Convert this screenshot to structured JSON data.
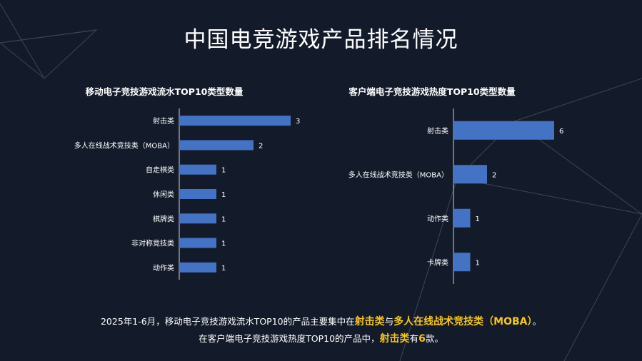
{
  "page_title": "中国电竞游戏产品排名情况",
  "chart_data": [
    {
      "type": "bar",
      "orientation": "horizontal",
      "title": "移动电子竞技游戏流水TOP10类型数量",
      "categories": [
        "射击类",
        "多人在线战术竞技类（MOBA）",
        "自走棋类",
        "休闲类",
        "棋牌类",
        "非对称竞技类",
        "动作类"
      ],
      "values": [
        3,
        2,
        1,
        1,
        1,
        1,
        1
      ],
      "xlim": [
        0,
        3
      ],
      "bar_color": "#4472c4"
    },
    {
      "type": "bar",
      "orientation": "horizontal",
      "title": "客户端电子竞技游戏热度TOP10类型数量",
      "categories": [
        "射击类",
        "多人在线战术竞技类（MOBA）",
        "动作类",
        "卡牌类"
      ],
      "values": [
        6,
        2,
        1,
        1
      ],
      "xlim": [
        0,
        6
      ],
      "bar_color": "#4472c4"
    }
  ],
  "summary": {
    "line1_a": "2025年1-6月，移动电子竞技游戏流水TOP10的产品主要集中在",
    "line1_hl1": "射击类",
    "line1_b": "与",
    "line1_hl2": "多人在线战术竞技类（MOBA）",
    "line1_c": "。",
    "line2_a": "在客户端电子竞技游戏热度TOP10的产品中，",
    "line2_hl1": "射击类",
    "line2_b": "有",
    "line2_hl2": "6",
    "line2_c": "款。"
  },
  "colors": {
    "background": "#131b2b",
    "bar": "#4472c4",
    "highlight": "#f5c518",
    "decor_lines": "#4a4f58"
  }
}
